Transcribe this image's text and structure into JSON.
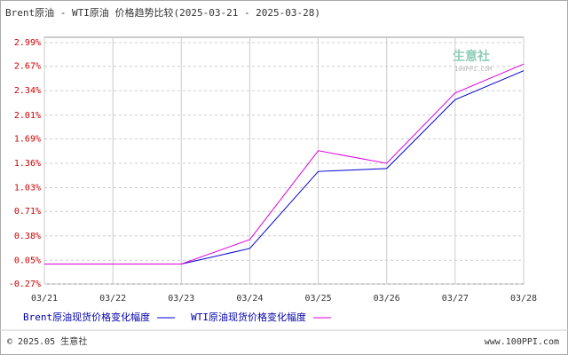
{
  "chart_data": {
    "type": "line",
    "title": "Brent原油 - WTI原油 价格趋势比较(2025-03-21 - 2025-03-28)",
    "categories": [
      "03/21",
      "03/22",
      "03/23",
      "03/24",
      "03/25",
      "03/26",
      "03/27",
      "03/28"
    ],
    "series": [
      {
        "name": "Brent原油现货价格变化幅度",
        "color": "#0000cc",
        "values": [
          0,
          0,
          0,
          0.21,
          1.25,
          1.29,
          2.22,
          2.61
        ]
      },
      {
        "name": "WTI原油现货价格变化幅度",
        "color": "#dd00dd",
        "values": [
          0,
          0,
          0,
          0.33,
          1.53,
          1.36,
          2.31,
          2.7
        ]
      }
    ],
    "ylim": [
      -0.27,
      2.99
    ],
    "yticks": [
      {
        "value": 2.99,
        "label": "2.99%"
      },
      {
        "value": 2.67,
        "label": "2.67%"
      },
      {
        "value": 2.34,
        "label": "2.34%"
      },
      {
        "value": 2.01,
        "label": "2.01%"
      },
      {
        "value": 1.69,
        "label": "1.69%"
      },
      {
        "value": 1.36,
        "label": "1.36%"
      },
      {
        "value": 1.03,
        "label": "1.03%"
      },
      {
        "value": 0.71,
        "label": "0.71%"
      },
      {
        "value": 0.38,
        "label": "0.38%"
      },
      {
        "value": 0.05,
        "label": "0.05%"
      },
      {
        "value": -0.27,
        "label": "-0.27%"
      }
    ],
    "grid": true,
    "watermark": {
      "name": "生意社",
      "site": "100PPI.COM"
    },
    "footer": {
      "copyright": "© 2025.05 生意社",
      "url": "www.100PPI.com"
    }
  }
}
